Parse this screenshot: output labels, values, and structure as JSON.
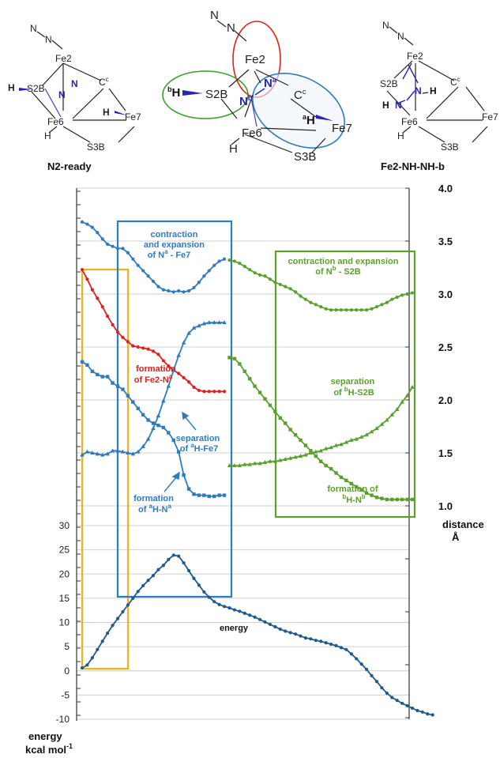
{
  "structures": [
    {
      "caption": "N2-ready",
      "labels": {
        "n_top": "N",
        "n_mid": "N",
        "fe2": "Fe2",
        "s2b": "S2B",
        "h_s2b": "H",
        "n_a": "N",
        "n_b": "N",
        "cc": "C",
        "cc_sup": "c",
        "h_fe7": "H",
        "fe7": "Fe7",
        "fe6": "Fe6",
        "h_fe6": "H",
        "s3b": "S3B"
      }
    },
    {
      "caption": "",
      "labels": {
        "n_top": "N",
        "n_mid": "N",
        "fe2": "Fe2",
        "s2b": "S2B",
        "bh_sup": "b",
        "bh": "H",
        "na": "N",
        "na_sup": "a",
        "nb": "N",
        "nb_sup": "b",
        "cc": "C",
        "cc_sup": "c",
        "ah_sup": "a",
        "ah": "H",
        "fe7": "Fe7",
        "fe6": "Fe6",
        "h_fe6": "H",
        "s3b": "S3B"
      }
    },
    {
      "caption": "Fe2-NH-NH-b",
      "labels": {
        "n_top": "N",
        "n_mid": "N",
        "fe2": "Fe2",
        "s2b": "S2B",
        "n1": "N",
        "h1": "H",
        "h2": "H",
        "n2": "N",
        "cc": "C",
        "cc_sup": "c",
        "fe6": "Fe6",
        "fe7": "Fe7",
        "h_fe6": "H",
        "s3b": "S3B"
      }
    }
  ],
  "chart_data": {
    "type": "line",
    "left_axis": {
      "label_line1": "energy",
      "label_line2": "kcal mol",
      "label_sup": "-1",
      "range": [
        -10,
        30
      ],
      "ticks": [
        "-10",
        "-5",
        "0",
        "5",
        "10",
        "15",
        "20",
        "25",
        "30"
      ]
    },
    "right_axis": {
      "label_line1": "distance",
      "label_line2": "Å",
      "range": [
        1.0,
        4.0
      ],
      "ticks": [
        "1.0",
        "1.5",
        "2.0",
        "2.5",
        "3.0",
        "3.5",
        "4.0"
      ]
    },
    "grid": true,
    "x_points": 80,
    "series": [
      {
        "key": "energy",
        "axis": "left",
        "color": "#1f5a8c",
        "marker": "circle",
        "start": 0,
        "values": [
          0.6,
          1.2,
          2.7,
          4.4,
          6.1,
          7.8,
          9.4,
          10.8,
          12.2,
          13.6,
          15.0,
          16.4,
          17.6,
          18.7,
          19.7,
          20.9,
          21.8,
          23.0,
          23.9,
          23.7,
          22.3,
          20.7,
          19.1,
          17.7,
          16.3,
          15.2,
          14.3,
          13.7,
          13.3,
          13.0,
          12.6,
          12.3,
          11.9,
          11.5,
          11.1,
          10.6,
          10.1,
          9.6,
          9.1,
          8.6,
          8.2,
          7.9,
          7.6,
          7.2,
          6.8,
          6.6,
          6.3,
          6.1,
          5.8,
          5.5,
          5.2,
          4.8,
          4.4,
          3.5,
          2.5,
          1.4,
          0.3,
          -1.0,
          -2.2,
          -3.5,
          -4.6,
          -5.5,
          -6.1,
          -6.7,
          -7.2,
          -7.7,
          -8.2,
          -8.5,
          -8.9,
          -9.1
        ]
      },
      {
        "key": "na_fe7",
        "axis": "right",
        "color": "#2e7cc0",
        "marker": "circle",
        "start": 0,
        "values": [
          3.68,
          3.66,
          3.63,
          3.58,
          3.52,
          3.47,
          3.45,
          3.43,
          3.43,
          3.39,
          3.33,
          3.27,
          3.22,
          3.17,
          3.12,
          3.07,
          3.04,
          3.03,
          3.02,
          3.03,
          3.02,
          3.03,
          3.06,
          3.11,
          3.17,
          3.22,
          3.27,
          3.31,
          3.33
        ]
      },
      {
        "key": "fe2_na",
        "axis": "right",
        "color": "#e0201c",
        "marker": "circle",
        "start": 0,
        "values": [
          3.23,
          3.14,
          3.04,
          2.96,
          2.88,
          2.79,
          2.71,
          2.64,
          2.59,
          2.55,
          2.51,
          2.5,
          2.49,
          2.48,
          2.46,
          2.43,
          2.37,
          2.32,
          2.28,
          2.25,
          2.21,
          2.17,
          2.12,
          2.09,
          2.08,
          2.08,
          2.08,
          2.08,
          2.08
        ]
      },
      {
        "key": "ah_na",
        "axis": "right",
        "color": "#2e7cc0",
        "marker": "square",
        "start": 0,
        "values": [
          2.36,
          2.33,
          2.27,
          2.24,
          2.22,
          2.22,
          2.16,
          2.13,
          2.1,
          2.04,
          1.98,
          1.92,
          1.86,
          1.81,
          1.78,
          1.76,
          1.74,
          1.69,
          1.62,
          1.51,
          1.29,
          1.16,
          1.11,
          1.1,
          1.1,
          1.09,
          1.09,
          1.1,
          1.1
        ]
      },
      {
        "key": "ah_fe7",
        "axis": "right",
        "color": "#2e7cc0",
        "marker": "triangle",
        "start": 0,
        "values": [
          1.48,
          1.51,
          1.5,
          1.49,
          1.48,
          1.49,
          1.52,
          1.52,
          1.51,
          1.5,
          1.49,
          1.51,
          1.56,
          1.63,
          1.73,
          1.85,
          1.99,
          2.13,
          2.28,
          2.42,
          2.54,
          2.63,
          2.68,
          2.7,
          2.72,
          2.73,
          2.73,
          2.73,
          2.73
        ]
      },
      {
        "key": "nb_s2b",
        "axis": "right",
        "color": "#5aa02c",
        "marker": "circle",
        "start": 29,
        "values": [
          3.32,
          3.31,
          3.29,
          3.26,
          3.23,
          3.2,
          3.18,
          3.17,
          3.14,
          3.11,
          3.09,
          3.07,
          3.05,
          3.02,
          2.98,
          2.95,
          2.92,
          2.9,
          2.88,
          2.86,
          2.85,
          2.85,
          2.85,
          2.85,
          2.85,
          2.85,
          2.85,
          2.85,
          2.86,
          2.88,
          2.9,
          2.92,
          2.95,
          2.97,
          2.99,
          3.0,
          3.01
        ]
      },
      {
        "key": "bh_s2b",
        "axis": "right",
        "color": "#5aa02c",
        "marker": "triangle",
        "start": 29,
        "values": [
          1.38,
          1.38,
          1.38,
          1.39,
          1.39,
          1.4,
          1.4,
          1.41,
          1.42,
          1.42,
          1.43,
          1.44,
          1.45,
          1.46,
          1.47,
          1.48,
          1.5,
          1.51,
          1.52,
          1.54,
          1.55,
          1.57,
          1.58,
          1.6,
          1.62,
          1.63,
          1.65,
          1.67,
          1.7,
          1.73,
          1.77,
          1.81,
          1.86,
          1.91,
          1.98,
          2.04,
          2.12
        ]
      },
      {
        "key": "bh_nb",
        "axis": "right",
        "color": "#5aa02c",
        "marker": "square",
        "start": 29,
        "values": [
          2.4,
          2.39,
          2.34,
          2.27,
          2.2,
          2.13,
          2.07,
          2.01,
          1.95,
          1.89,
          1.83,
          1.78,
          1.72,
          1.67,
          1.62,
          1.57,
          1.52,
          1.47,
          1.42,
          1.38,
          1.35,
          1.31,
          1.27,
          1.24,
          1.21,
          1.18,
          1.15,
          1.12,
          1.1,
          1.08,
          1.07,
          1.06,
          1.06,
          1.06,
          1.06,
          1.06,
          1.06
        ]
      }
    ],
    "annotations": {
      "contraction_na_fe7": {
        "l1": "contraction",
        "l2": "and expansion",
        "l3a": "of N",
        "l3sup": "a",
        "l3b": " - Fe7"
      },
      "contraction_nb_s2b": {
        "l1": "contraction and expansion",
        "l2a": "of N",
        "l2sup": "b",
        "l2b": " - S2B"
      },
      "formation_fe2_na": {
        "l1": "formation",
        "l2a": "of Fe2-N",
        "l2sup": "a"
      },
      "separation_ah_fe7": {
        "l1": "separation",
        "l2a": "of ",
        "l2sup": "a",
        "l2b": "H-Fe7"
      },
      "formation_ah_na": {
        "l1": "formation",
        "l2a": "of ",
        "l2sup": "a",
        "l2b": "H-N",
        "l2sup2": "a"
      },
      "separation_bh_s2b": {
        "l1": "separation",
        "l2a": "of ",
        "l2sup": "b",
        "l2b": "H-S2B"
      },
      "formation_bh_nb": {
        "l1": "formation of",
        "l2sup": "b",
        "l2a": "H-N",
        "l2sup2": "b"
      },
      "energy": "energy"
    },
    "boxes": [
      {
        "key": "yellow",
        "color": "#f2b01e"
      },
      {
        "key": "blue",
        "color": "#2e7cc0"
      },
      {
        "key": "green",
        "color": "#5aa02c"
      }
    ]
  }
}
